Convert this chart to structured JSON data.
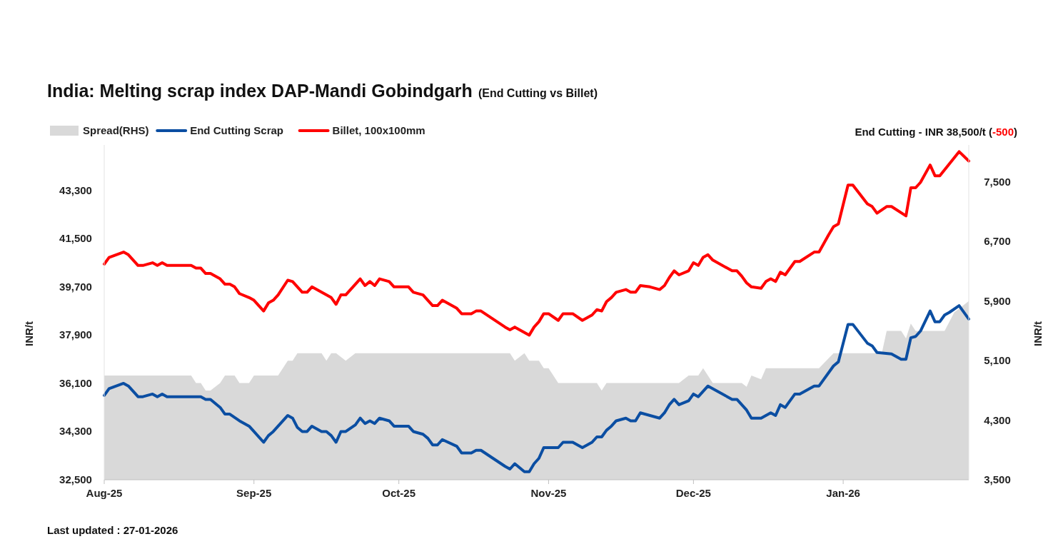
{
  "chart_data": {
    "type": "line",
    "title": "India: Melting scrap index DAP-Mandi Gobindgarh",
    "subtitle": "(End Cutting vs Billet)",
    "ylabel": "INR/t",
    "y2label": "INR/t",
    "legend": "top left",
    "grid": false,
    "annotations": [
      "End Cutting - INR 38,500/t (-500)",
      "Last updated : 27-01-2026"
    ],
    "xlim": [
      "2025-08-01",
      "2026-01-27"
    ],
    "xticks": [
      {
        "value": "2025-08-01",
        "label": "Aug-25"
      },
      {
        "value": "2025-09-01",
        "label": "Sep-25"
      },
      {
        "value": "2025-10-01",
        "label": "Oct-25"
      },
      {
        "value": "2025-11-01",
        "label": "Nov-25"
      },
      {
        "value": "2025-12-01",
        "label": "Dec-25"
      },
      {
        "value": "2026-01-01",
        "label": "Jan-26"
      }
    ],
    "ylim": [
      32500,
      45000
    ],
    "yticks": [
      {
        "value": 32500,
        "label": "32,500"
      },
      {
        "value": 34300,
        "label": "34,300"
      },
      {
        "value": 36100,
        "label": "36,100"
      },
      {
        "value": 37900,
        "label": "37,900"
      },
      {
        "value": 39700,
        "label": "39,700"
      },
      {
        "value": 41500,
        "label": "41,500"
      },
      {
        "value": 43300,
        "label": "43,300"
      }
    ],
    "y2lim": [
      3500,
      8000
    ],
    "y2ticks": [
      {
        "value": 3500,
        "label": "3,500"
      },
      {
        "value": 4300,
        "label": "4,300"
      },
      {
        "value": 5100,
        "label": "5,100"
      },
      {
        "value": 5900,
        "label": "5,900"
      },
      {
        "value": 6700,
        "label": "6,700"
      },
      {
        "value": 7500,
        "label": "7,500"
      }
    ],
    "series": [
      {
        "name": "Spread(RHS)",
        "type": "area",
        "axis": "y2",
        "color": "#d9d9d9",
        "x": [
          "2025-08-01",
          "2025-08-19",
          "2025-08-20",
          "2025-08-21",
          "2025-08-22",
          "2025-08-23",
          "2025-08-25",
          "2025-08-26",
          "2025-08-28",
          "2025-08-29",
          "2025-08-31",
          "2025-09-01",
          "2025-09-06",
          "2025-09-08",
          "2025-09-09",
          "2025-09-10",
          "2025-09-15",
          "2025-09-16",
          "2025-09-17",
          "2025-09-18",
          "2025-09-20",
          "2025-09-22",
          "2025-10-24",
          "2025-10-25",
          "2025-10-27",
          "2025-10-28",
          "2025-10-30",
          "2025-10-31",
          "2025-11-01",
          "2025-11-03",
          "2025-11-11",
          "2025-11-12",
          "2025-11-13",
          "2025-11-27",
          "2025-11-28",
          "2025-11-30",
          "2025-12-02",
          "2025-12-03",
          "2025-12-05",
          "2025-12-11",
          "2025-12-12",
          "2025-12-13",
          "2025-12-15",
          "2025-12-16",
          "2025-12-27",
          "2025-12-30",
          "2026-01-09",
          "2026-01-10",
          "2026-01-13",
          "2026-01-14",
          "2026-01-15",
          "2026-01-16",
          "2026-01-22",
          "2026-01-24",
          "2026-01-27"
        ],
        "values": [
          4900,
          4900,
          4800,
          4800,
          4700,
          4700,
          4800,
          4900,
          4900,
          4800,
          4800,
          4900,
          4900,
          5100,
          5100,
          5200,
          5200,
          5100,
          5200,
          5200,
          5100,
          5200,
          5200,
          5100,
          5200,
          5100,
          5100,
          5000,
          5000,
          4800,
          4800,
          4700,
          4800,
          4800,
          4800,
          4900,
          4900,
          5000,
          4800,
          4800,
          4750,
          4900,
          4850,
          5000,
          5000,
          5200,
          5200,
          5500,
          5500,
          5400,
          5600,
          5500,
          5500,
          5750,
          5900
        ]
      },
      {
        "name": "End Cutting Scrap",
        "color": "#0b4ea2",
        "x": [
          "2025-08-01",
          "2025-08-02",
          "2025-08-05",
          "2025-08-06",
          "2025-08-08",
          "2025-08-09",
          "2025-08-11",
          "2025-08-12",
          "2025-08-13",
          "2025-08-14",
          "2025-08-21",
          "2025-08-22",
          "2025-08-23",
          "2025-08-25",
          "2025-08-26",
          "2025-08-27",
          "2025-08-29",
          "2025-08-31",
          "2025-09-01",
          "2025-09-03",
          "2025-09-04",
          "2025-09-05",
          "2025-09-08",
          "2025-09-09",
          "2025-09-10",
          "2025-09-11",
          "2025-09-12",
          "2025-09-13",
          "2025-09-15",
          "2025-09-16",
          "2025-09-17",
          "2025-09-18",
          "2025-09-19",
          "2025-09-20",
          "2025-09-22",
          "2025-09-23",
          "2025-09-24",
          "2025-09-25",
          "2025-09-26",
          "2025-09-27",
          "2025-09-29",
          "2025-09-30",
          "2025-10-03",
          "2025-10-04",
          "2025-10-06",
          "2025-10-07",
          "2025-10-08",
          "2025-10-09",
          "2025-10-10",
          "2025-10-13",
          "2025-10-14",
          "2025-10-16",
          "2025-10-17",
          "2025-10-18",
          "2025-10-23",
          "2025-10-24",
          "2025-10-25",
          "2025-10-27",
          "2025-10-28",
          "2025-10-29",
          "2025-10-30",
          "2025-10-31",
          "2025-11-03",
          "2025-11-04",
          "2025-11-06",
          "2025-11-08",
          "2025-11-10",
          "2025-11-11",
          "2025-11-12",
          "2025-11-13",
          "2025-11-14",
          "2025-11-15",
          "2025-11-17",
          "2025-11-18",
          "2025-11-19",
          "2025-11-20",
          "2025-11-22",
          "2025-11-24",
          "2025-11-25",
          "2025-11-26",
          "2025-11-27",
          "2025-11-28",
          "2025-11-30",
          "2025-12-01",
          "2025-12-02",
          "2025-12-04",
          "2025-12-09",
          "2025-12-10",
          "2025-12-11",
          "2025-12-12",
          "2025-12-13",
          "2025-12-15",
          "2025-12-17",
          "2025-12-18",
          "2025-12-19",
          "2025-12-20",
          "2025-12-22",
          "2025-12-23",
          "2025-12-26",
          "2025-12-27",
          "2025-12-30",
          "2025-12-31",
          "2026-01-02",
          "2026-01-03",
          "2026-01-06",
          "2026-01-07",
          "2026-01-08",
          "2026-01-11",
          "2026-01-13",
          "2026-01-14",
          "2026-01-15",
          "2026-01-16",
          "2026-01-17",
          "2026-01-19",
          "2026-01-20",
          "2026-01-21",
          "2026-01-22",
          "2026-01-23",
          "2026-01-25",
          "2026-01-27"
        ],
        "values": [
          35650,
          35900,
          36100,
          36000,
          35600,
          35600,
          35700,
          35600,
          35700,
          35600,
          35600,
          35500,
          35500,
          35200,
          34950,
          34950,
          34700,
          34500,
          34300,
          33900,
          34150,
          34300,
          34900,
          34800,
          34450,
          34300,
          34300,
          34500,
          34300,
          34300,
          34150,
          33900,
          34300,
          34300,
          34550,
          34800,
          34600,
          34700,
          34600,
          34800,
          34700,
          34500,
          34500,
          34300,
          34200,
          34050,
          33800,
          33800,
          34000,
          33750,
          33500,
          33500,
          33600,
          33600,
          33000,
          32900,
          33100,
          32800,
          32800,
          33100,
          33300,
          33700,
          33700,
          33900,
          33900,
          33700,
          33900,
          34100,
          34100,
          34350,
          34500,
          34700,
          34800,
          34700,
          34700,
          35000,
          34900,
          34800,
          35000,
          35300,
          35500,
          35300,
          35450,
          35700,
          35600,
          36000,
          35500,
          35500,
          35300,
          35100,
          34800,
          34800,
          35000,
          34900,
          35300,
          35200,
          35700,
          35700,
          36000,
          36000,
          36750,
          36900,
          38300,
          38300,
          37600,
          37500,
          37250,
          37200,
          37000,
          37000,
          37800,
          37850,
          38050,
          38800,
          38400,
          38400,
          38650,
          38750,
          39000,
          38500
        ]
      },
      {
        "name": "Billet, 100x100mm",
        "color": "#ff0000",
        "x": [
          "2025-08-01",
          "2025-08-02",
          "2025-08-05",
          "2025-08-06",
          "2025-08-07",
          "2025-08-08",
          "2025-08-09",
          "2025-08-11",
          "2025-08-12",
          "2025-08-13",
          "2025-08-14",
          "2025-08-19",
          "2025-08-20",
          "2025-08-21",
          "2025-08-22",
          "2025-08-23",
          "2025-08-25",
          "2025-08-26",
          "2025-08-27",
          "2025-08-28",
          "2025-08-29",
          "2025-08-31",
          "2025-09-01",
          "2025-09-02",
          "2025-09-03",
          "2025-09-04",
          "2025-09-05",
          "2025-09-06",
          "2025-09-08",
          "2025-09-09",
          "2025-09-11",
          "2025-09-12",
          "2025-09-13",
          "2025-09-17",
          "2025-09-18",
          "2025-09-19",
          "2025-09-20",
          "2025-09-23",
          "2025-09-24",
          "2025-09-25",
          "2025-09-26",
          "2025-09-27",
          "2025-09-29",
          "2025-09-30",
          "2025-10-03",
          "2025-10-04",
          "2025-10-06",
          "2025-10-07",
          "2025-10-08",
          "2025-10-09",
          "2025-10-10",
          "2025-10-13",
          "2025-10-14",
          "2025-10-16",
          "2025-10-17",
          "2025-10-18",
          "2025-10-23",
          "2025-10-24",
          "2025-10-25",
          "2025-10-28",
          "2025-10-29",
          "2025-10-30",
          "2025-10-31",
          "2025-11-01",
          "2025-11-03",
          "2025-11-04",
          "2025-11-06",
          "2025-11-08",
          "2025-11-10",
          "2025-11-11",
          "2025-11-12",
          "2025-11-13",
          "2025-11-14",
          "2025-11-15",
          "2025-11-17",
          "2025-11-18",
          "2025-11-19",
          "2025-11-20",
          "2025-11-22",
          "2025-11-24",
          "2025-11-25",
          "2025-11-26",
          "2025-11-27",
          "2025-11-28",
          "2025-11-30",
          "2025-12-01",
          "2025-12-02",
          "2025-12-03",
          "2025-12-04",
          "2025-12-05",
          "2025-12-09",
          "2025-12-10",
          "2025-12-11",
          "2025-12-12",
          "2025-12-13",
          "2025-12-15",
          "2025-12-16",
          "2025-12-17",
          "2025-12-18",
          "2025-12-19",
          "2025-12-20",
          "2025-12-22",
          "2025-12-23",
          "2025-12-26",
          "2025-12-27",
          "2025-12-29",
          "2025-12-30",
          "2025-12-31",
          "2026-01-02",
          "2026-01-03",
          "2026-01-06",
          "2026-01-07",
          "2026-01-08",
          "2026-01-10",
          "2026-01-11",
          "2026-01-14",
          "2026-01-15",
          "2026-01-16",
          "2026-01-17",
          "2026-01-19",
          "2026-01-20",
          "2026-01-21",
          "2026-01-25",
          "2026-01-27"
        ],
        "values": [
          40550,
          40800,
          41000,
          40900,
          40700,
          40500,
          40500,
          40600,
          40500,
          40600,
          40500,
          40500,
          40400,
          40400,
          40200,
          40200,
          40000,
          39800,
          39800,
          39700,
          39450,
          39300,
          39200,
          39000,
          38800,
          39100,
          39200,
          39400,
          39950,
          39900,
          39500,
          39500,
          39700,
          39300,
          39050,
          39400,
          39400,
          40000,
          39750,
          39900,
          39750,
          40000,
          39900,
          39700,
          39700,
          39500,
          39400,
          39200,
          39000,
          39000,
          39200,
          38900,
          38700,
          38700,
          38800,
          38800,
          38200,
          38100,
          38200,
          37900,
          38200,
          38400,
          38700,
          38700,
          38450,
          38700,
          38700,
          38450,
          38650,
          38850,
          38800,
          39150,
          39300,
          39500,
          39600,
          39500,
          39500,
          39750,
          39700,
          39600,
          39750,
          40050,
          40300,
          40150,
          40300,
          40600,
          40500,
          40800,
          40900,
          40700,
          40300,
          40300,
          40100,
          39850,
          39700,
          39650,
          39900,
          40000,
          39900,
          40250,
          40150,
          40650,
          40650,
          41000,
          41000,
          41650,
          41950,
          42050,
          43500,
          43500,
          42800,
          42700,
          42450,
          42700,
          42700,
          42350,
          43400,
          43400,
          43600,
          44250,
          43850,
          43850,
          44750,
          44400
        ]
      }
    ]
  }
}
